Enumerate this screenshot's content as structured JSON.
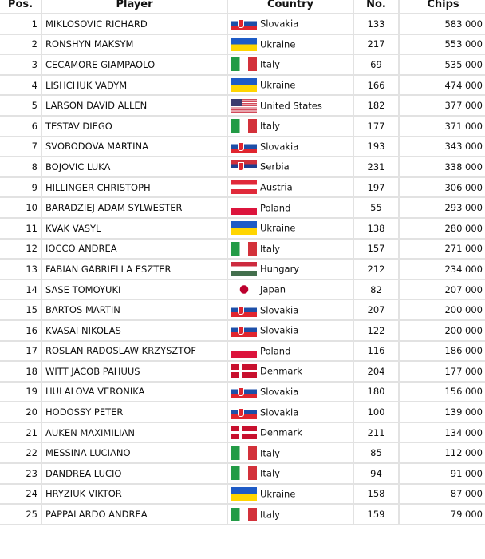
{
  "headers": {
    "pos": "Pos.",
    "player": "Player",
    "country": "Country",
    "no": "No.",
    "chips": "Chips"
  },
  "rows": [
    {
      "pos": "1",
      "player": "MIKLOSOVIC RICHARD",
      "country": "Slovakia",
      "flag": "sk",
      "no": "133",
      "chips": "583 000"
    },
    {
      "pos": "2",
      "player": "RONSHYN MAKSYM",
      "country": "Ukraine",
      "flag": "ua",
      "no": "217",
      "chips": "553 000"
    },
    {
      "pos": "3",
      "player": "CECAMORE GIAMPAOLO",
      "country": "Italy",
      "flag": "it",
      "no": "69",
      "chips": "535 000"
    },
    {
      "pos": "4",
      "player": "LISHCHUK VADYM",
      "country": "Ukraine",
      "flag": "ua",
      "no": "166",
      "chips": "474 000"
    },
    {
      "pos": "5",
      "player": "LARSON DAVID ALLEN",
      "country": "United States",
      "flag": "us",
      "no": "182",
      "chips": "377 000"
    },
    {
      "pos": "6",
      "player": "TESTAV DIEGO",
      "country": "Italy",
      "flag": "it",
      "no": "177",
      "chips": "371 000"
    },
    {
      "pos": "7",
      "player": "SVOBODOVA MARTINA",
      "country": "Slovakia",
      "flag": "sk",
      "no": "193",
      "chips": "343 000"
    },
    {
      "pos": "8",
      "player": "BOJOVIC LUKA",
      "country": "Serbia",
      "flag": "rs",
      "no": "231",
      "chips": "338 000"
    },
    {
      "pos": "9",
      "player": "HILLINGER CHRISTOPH",
      "country": "Austria",
      "flag": "at",
      "no": "197",
      "chips": "306 000"
    },
    {
      "pos": "10",
      "player": "BARADZIEJ ADAM SYLWESTER",
      "country": "Poland",
      "flag": "pl",
      "no": "55",
      "chips": "293 000"
    },
    {
      "pos": "11",
      "player": "KVAK VASYL",
      "country": "Ukraine",
      "flag": "ua",
      "no": "138",
      "chips": "280 000"
    },
    {
      "pos": "12",
      "player": "IOCCO ANDREA",
      "country": "Italy",
      "flag": "it",
      "no": "157",
      "chips": "271 000"
    },
    {
      "pos": "13",
      "player": "FABIAN GABRIELLA ESZTER",
      "country": "Hungary",
      "flag": "hu",
      "no": "212",
      "chips": "234 000"
    },
    {
      "pos": "14",
      "player": "SASE TOMOYUKI",
      "country": "Japan",
      "flag": "jp",
      "no": "82",
      "chips": "207 000"
    },
    {
      "pos": "15",
      "player": "BARTOS MARTIN",
      "country": "Slovakia",
      "flag": "sk",
      "no": "207",
      "chips": "200 000"
    },
    {
      "pos": "16",
      "player": "KVASAI NIKOLAS",
      "country": "Slovakia",
      "flag": "sk",
      "no": "122",
      "chips": "200 000"
    },
    {
      "pos": "17",
      "player": "ROSLAN RADOSLAW KRZYSZTOF",
      "country": "Poland",
      "flag": "pl",
      "no": "116",
      "chips": "186 000"
    },
    {
      "pos": "18",
      "player": "WITT JACOB PAHUUS",
      "country": "Denmark",
      "flag": "dk",
      "no": "204",
      "chips": "177 000"
    },
    {
      "pos": "19",
      "player": "HULALOVA VERONIKA",
      "country": "Slovakia",
      "flag": "sk",
      "no": "180",
      "chips": "156 000"
    },
    {
      "pos": "20",
      "player": "HODOSSY PETER",
      "country": "Slovakia",
      "flag": "sk",
      "no": "100",
      "chips": "139 000"
    },
    {
      "pos": "21",
      "player": "AUKEN MAXIMILIAN",
      "country": "Denmark",
      "flag": "dk",
      "no": "211",
      "chips": "134 000"
    },
    {
      "pos": "22",
      "player": "MESSINA LUCIANO",
      "country": "Italy",
      "flag": "it",
      "no": "85",
      "chips": "112 000"
    },
    {
      "pos": "23",
      "player": "DANDREA LUCIO",
      "country": "Italy",
      "flag": "it",
      "no": "94",
      "chips": "91 000"
    },
    {
      "pos": "24",
      "player": "HRYZIUK VIKTOR",
      "country": "Ukraine",
      "flag": "ua",
      "no": "158",
      "chips": "87 000"
    },
    {
      "pos": "25",
      "player": "PAPPALARDO ANDREA",
      "country": "Italy",
      "flag": "it",
      "no": "159",
      "chips": "79 000"
    }
  ]
}
